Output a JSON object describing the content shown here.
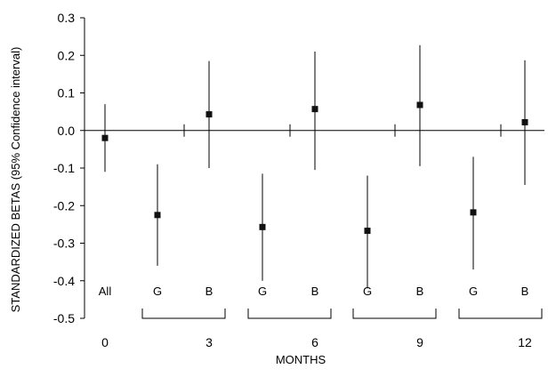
{
  "chart_data": {
    "type": "scatter",
    "title": "",
    "xlabel": "MONTHS",
    "ylabel": "STANDARDIZED BETAS (95% Confidence interval)",
    "ylim": [
      -0.5,
      0.3
    ],
    "y_ticks": [
      "0.3",
      "0.2",
      "0.1",
      "0.0",
      "-0.1",
      "-0.2",
      "-0.3",
      "-0.4",
      "-0.5"
    ],
    "x_ticks": [
      "0",
      "3",
      "6",
      "9",
      "12"
    ],
    "grid": false,
    "legend": "none",
    "points": [
      {
        "label": "All",
        "month": 0,
        "beta": -0.02,
        "ci_low": -0.11,
        "ci_high": 0.07
      },
      {
        "label": "G",
        "month": 3,
        "beta": -0.225,
        "ci_low": -0.36,
        "ci_high": -0.09
      },
      {
        "label": "B",
        "month": 3,
        "beta": 0.043,
        "ci_low": -0.1,
        "ci_high": 0.185
      },
      {
        "label": "G",
        "month": 6,
        "beta": -0.257,
        "ci_low": -0.4,
        "ci_high": -0.115
      },
      {
        "label": "B",
        "month": 6,
        "beta": 0.057,
        "ci_low": -0.105,
        "ci_high": 0.21
      },
      {
        "label": "G",
        "month": 9,
        "beta": -0.267,
        "ci_low": -0.42,
        "ci_high": -0.12
      },
      {
        "label": "B",
        "month": 9,
        "beta": 0.068,
        "ci_low": -0.095,
        "ci_high": 0.227
      },
      {
        "label": "G",
        "month": 12,
        "beta": -0.218,
        "ci_low": -0.37,
        "ci_high": -0.07
      },
      {
        "label": "B",
        "month": 12,
        "beta": 0.022,
        "ci_low": -0.145,
        "ci_high": 0.187
      }
    ]
  }
}
